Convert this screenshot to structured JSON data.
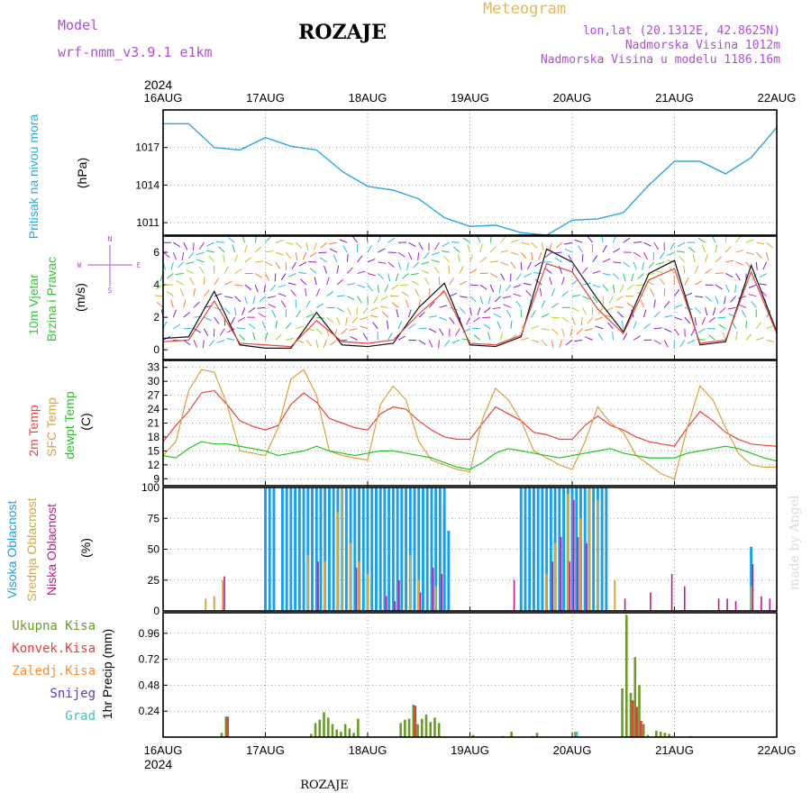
{
  "header": {
    "model_label": "Model",
    "model_name": "wrf-nmm_v3.9.1  e1km",
    "station": "ROZAJE",
    "product": "Meteogram",
    "coords": "lon,lat (20.1312E, 42.8625N)",
    "elevation": "Nadmorska Visina 1012m",
    "model_elevation": "Nadmorska Visina u modelu 1186.16m",
    "footer_station": "ROZAJE",
    "watermark": "made by Angel"
  },
  "x_axis": {
    "year": "2024",
    "days": [
      "16AUG",
      "17AUG",
      "18AUG",
      "19AUG",
      "20AUG",
      "21AUG",
      "22AUG"
    ]
  },
  "colors": {
    "pressure": "#2aa7e0",
    "t2m": "#e8443a",
    "sfc": "#d9a23d",
    "dewpt": "#22c322",
    "high_cloud": "#1aa0e4",
    "mid_cloud": "#d4a843",
    "low_cloud": "#c2178e",
    "precip_total": "#6a9a28",
    "precip_conv": "#e83b3b",
    "precip_snow": "#4b3fd0",
    "precip_graupel": "#36c9b5",
    "precip_frozen": "#ff8a30",
    "wind_label": "#33c433",
    "dir_legend": "#b04dd6"
  },
  "chart_data": [
    {
      "type": "line",
      "panel": "pressure",
      "ylabel_main": "Pritisak na nivou mora",
      "unit": "(hPa)",
      "yticks": [
        1011,
        1014,
        1017
      ],
      "ylim": [
        1010.0,
        1020.0
      ],
      "x_hours": [
        0,
        6,
        12,
        18,
        24,
        30,
        36,
        42,
        48,
        54,
        60,
        66,
        72,
        78,
        84,
        90,
        96,
        102,
        108,
        114,
        120,
        126,
        132,
        138,
        144
      ],
      "series": [
        {
          "values": [
            1018.9,
            1018.9,
            1017.0,
            1016.8,
            1017.8,
            1017.1,
            1016.8,
            1015.1,
            1013.9,
            1013.6,
            1012.9,
            1011.4,
            1010.7,
            1010.8,
            1010.2,
            1010.0,
            1011.2,
            1011.3,
            1011.8,
            1014.0,
            1015.9,
            1015.9,
            1014.9,
            1016.2,
            1018.6
          ]
        }
      ]
    },
    {
      "type": "line",
      "panel": "wind",
      "ylabel_main": "10m Vjetar",
      "ylabel_sub": "Brzina i Pravac",
      "unit": "(m/s)",
      "yticks": [
        0,
        2,
        4,
        6
      ],
      "ylim": [
        -0.6,
        7.0
      ],
      "direction_legend": [
        "N",
        "W",
        "E",
        "S"
      ],
      "x_hours": [
        0,
        6,
        12,
        18,
        24,
        30,
        36,
        42,
        48,
        54,
        60,
        66,
        72,
        78,
        84,
        90,
        96,
        102,
        108,
        114,
        120,
        126,
        132,
        138,
        144
      ],
      "series": [
        {
          "values": [
            0.7,
            0.8,
            3.6,
            0.3,
            0.1,
            0.1,
            2.3,
            0.3,
            0.2,
            0.4,
            2.6,
            4.1,
            0.3,
            0.2,
            0.8,
            6.2,
            5.4,
            3.1,
            1.1,
            4.7,
            5.5,
            0.3,
            0.5,
            5.2,
            1.1
          ]
        },
        {
          "values": [
            0.5,
            0.6,
            3.0,
            0.4,
            0.3,
            0.2,
            1.8,
            0.5,
            0.4,
            0.6,
            2.2,
            3.6,
            0.4,
            0.3,
            0.9,
            5.3,
            4.8,
            2.5,
            1.0,
            4.3,
            5.0,
            0.4,
            0.6,
            4.8,
            1.0
          ]
        }
      ]
    },
    {
      "type": "line",
      "panel": "temperature",
      "ylabels": [
        "2m Temp",
        "SFC Temp",
        "dewpt Temp"
      ],
      "unit": "(C)",
      "yticks": [
        9,
        12,
        15,
        18,
        21,
        24,
        27,
        30,
        33
      ],
      "ylim": [
        7.5,
        34.5
      ],
      "x_hours": [
        0,
        3,
        6,
        9,
        12,
        15,
        18,
        21,
        24,
        27,
        30,
        33,
        36,
        39,
        42,
        45,
        48,
        51,
        54,
        57,
        60,
        63,
        66,
        69,
        72,
        75,
        78,
        81,
        84,
        87,
        90,
        93,
        96,
        99,
        102,
        105,
        108,
        111,
        114,
        117,
        120,
        123,
        126,
        129,
        132,
        135,
        138,
        141,
        144
      ],
      "series": [
        {
          "name": "2m Temp",
          "values": [
            17.0,
            20.5,
            23.5,
            27.5,
            28.0,
            25.0,
            21.5,
            20.3,
            19.5,
            20.5,
            25.0,
            27.5,
            25.5,
            22.0,
            21.0,
            20.0,
            19.5,
            23.0,
            24.5,
            24.0,
            21.5,
            19.5,
            18.0,
            17.5,
            17.5,
            21.0,
            24.5,
            23.0,
            21.5,
            19.0,
            18.5,
            17.5,
            17.5,
            20.5,
            22.5,
            20.5,
            19.5,
            18.0,
            17.0,
            16.5,
            16.0,
            20.0,
            23.5,
            21.5,
            19.0,
            17.5,
            16.5,
            16.2,
            16.0
          ]
        },
        {
          "name": "SFC Temp",
          "values": [
            14.0,
            17.0,
            28.0,
            32.5,
            32.0,
            25.0,
            15.0,
            14.5,
            14.0,
            20.0,
            30.5,
            32.5,
            27.0,
            15.0,
            14.0,
            13.5,
            13.0,
            25.0,
            29.0,
            26.0,
            17.0,
            13.0,
            12.0,
            11.0,
            10.5,
            22.0,
            28.5,
            26.0,
            21.5,
            15.0,
            13.5,
            12.0,
            11.0,
            17.0,
            24.5,
            21.0,
            19.0,
            14.0,
            12.0,
            10.0,
            9.0,
            20.0,
            29.0,
            26.0,
            20.0,
            14.5,
            12.0,
            11.5,
            11.5
          ]
        },
        {
          "name": "dewpt Temp",
          "values": [
            14.0,
            13.5,
            15.5,
            17.0,
            16.5,
            16.5,
            16.0,
            15.5,
            15.0,
            14.0,
            14.5,
            15.0,
            16.0,
            15.0,
            14.5,
            14.0,
            14.5,
            15.0,
            15.0,
            14.5,
            14.0,
            13.5,
            12.5,
            11.5,
            11.0,
            12.5,
            14.5,
            15.5,
            15.0,
            14.5,
            14.0,
            13.5,
            14.0,
            14.5,
            15.0,
            15.5,
            14.5,
            14.0,
            13.5,
            13.5,
            13.5,
            14.5,
            15.0,
            15.5,
            16.0,
            15.5,
            14.5,
            13.5,
            12.8
          ]
        }
      ]
    },
    {
      "type": "bar",
      "panel": "cloud",
      "ylabels": [
        "Visoka Oblacnost",
        "Srednja Oblacnost",
        "Niska Oblacnost"
      ],
      "unit": "(%)",
      "yticks": [
        0,
        25,
        50,
        75,
        100
      ],
      "ylim": [
        0,
        100
      ],
      "series": [
        {
          "name": "Visoka Oblacnost",
          "blocks": [
            [
              24,
              26,
              100
            ],
            [
              28,
              66,
              100
            ],
            [
              84,
              104,
              100
            ]
          ],
          "extra": [
            [
              66,
              85
            ],
            [
              67,
              65
            ],
            [
              68,
              0
            ],
            [
              138,
              52
            ]
          ]
        },
        {
          "name": "Srednja Oblacnost",
          "values": [
            [
              10,
              10
            ],
            [
              12,
              12
            ],
            [
              14,
              25
            ],
            [
              30,
              0
            ],
            [
              34,
              45
            ],
            [
              38,
              40
            ],
            [
              41,
              80
            ],
            [
              42,
              100
            ],
            [
              44,
              55
            ],
            [
              46,
              40
            ],
            [
              48,
              30
            ],
            [
              58,
              45
            ],
            [
              60,
              25
            ],
            [
              64,
              20
            ],
            [
              90,
              30
            ],
            [
              92,
              55
            ],
            [
              95,
              95
            ],
            [
              98,
              75
            ],
            [
              100,
              100
            ],
            [
              102,
              90
            ],
            [
              106,
              25
            ],
            [
              138,
              20
            ]
          ]
        },
        {
          "name": "Niska Oblacnost",
          "values": [
            [
              14,
              28
            ],
            [
              36,
              40
            ],
            [
              45,
              35
            ],
            [
              52,
              12
            ],
            [
              54,
              8
            ],
            [
              55,
              25
            ],
            [
              60,
              15
            ],
            [
              63,
              35
            ],
            [
              65,
              30
            ],
            [
              82,
              25
            ],
            [
              91,
              40
            ],
            [
              93,
              60
            ],
            [
              95,
              40
            ],
            [
              96,
              90
            ],
            [
              97,
              60
            ],
            [
              99,
              55
            ],
            [
              108,
              10
            ],
            [
              114,
              15
            ],
            [
              119,
              30
            ],
            [
              122,
              20
            ],
            [
              130,
              10
            ],
            [
              132,
              10
            ],
            [
              134,
              8
            ],
            [
              138,
              38
            ],
            [
              140,
              12
            ],
            [
              142,
              10
            ]
          ]
        }
      ]
    },
    {
      "type": "bar",
      "panel": "precip",
      "ylabels": [
        "Ukupna Kisa",
        "Konvek.Kisa",
        "Zaledj.Kisa",
        "Snijeg",
        "Grad"
      ],
      "ylabel_main": "1hr Precip (mm)",
      "yticks": [
        0.24,
        0.48,
        0.72,
        0.96
      ],
      "ylim": [
        0,
        1.15
      ],
      "series": [
        {
          "name": "Ukupna Kisa",
          "values": [
            [
              14,
              0.04
            ],
            [
              15,
              0.19
            ],
            [
              35,
              0.03
            ],
            [
              36,
              0.13
            ],
            [
              37,
              0.16
            ],
            [
              38,
              0.23
            ],
            [
              39,
              0.18
            ],
            [
              40,
              0.12
            ],
            [
              41,
              0.07
            ],
            [
              42,
              0.05
            ],
            [
              43,
              0.12
            ],
            [
              44,
              0.08
            ],
            [
              45,
              0.04
            ],
            [
              46,
              0.17
            ],
            [
              56,
              0.13
            ],
            [
              57,
              0.16
            ],
            [
              58,
              0.17
            ],
            [
              59,
              0.3
            ],
            [
              60,
              0.12
            ],
            [
              61,
              0.17
            ],
            [
              62,
              0.21
            ],
            [
              63,
              0.14
            ],
            [
              64,
              0.18
            ],
            [
              65,
              0.13
            ],
            [
              73,
              0.02
            ],
            [
              80,
              0.01
            ],
            [
              82,
              0.05
            ],
            [
              87,
              0.01
            ],
            [
              88,
              0.04
            ],
            [
              97,
              0.05
            ],
            [
              108,
              0.45
            ],
            [
              109,
              1.13
            ],
            [
              110,
              0.41
            ],
            [
              111,
              0.74
            ],
            [
              112,
              0.48
            ],
            [
              113,
              0.12
            ],
            [
              114,
              0.02
            ],
            [
              116,
              0.06
            ],
            [
              117,
              0.05
            ],
            [
              118,
              0.04
            ],
            [
              119,
              0.03
            ],
            [
              120,
              0.01
            ],
            [
              124,
              0.01
            ]
          ]
        },
        {
          "name": "Konvek.Kisa",
          "values": [
            [
              15,
              0.19
            ],
            [
              59,
              0.29
            ],
            [
              110,
              0.34
            ],
            [
              111,
              0.28
            ],
            [
              112,
              0.15
            ]
          ]
        },
        {
          "name": "Zaledj.Kisa",
          "values": []
        },
        {
          "name": "Snijeg",
          "values": []
        },
        {
          "name": "Grad",
          "values": [
            [
              97,
              0.05
            ]
          ]
        }
      ]
    }
  ]
}
